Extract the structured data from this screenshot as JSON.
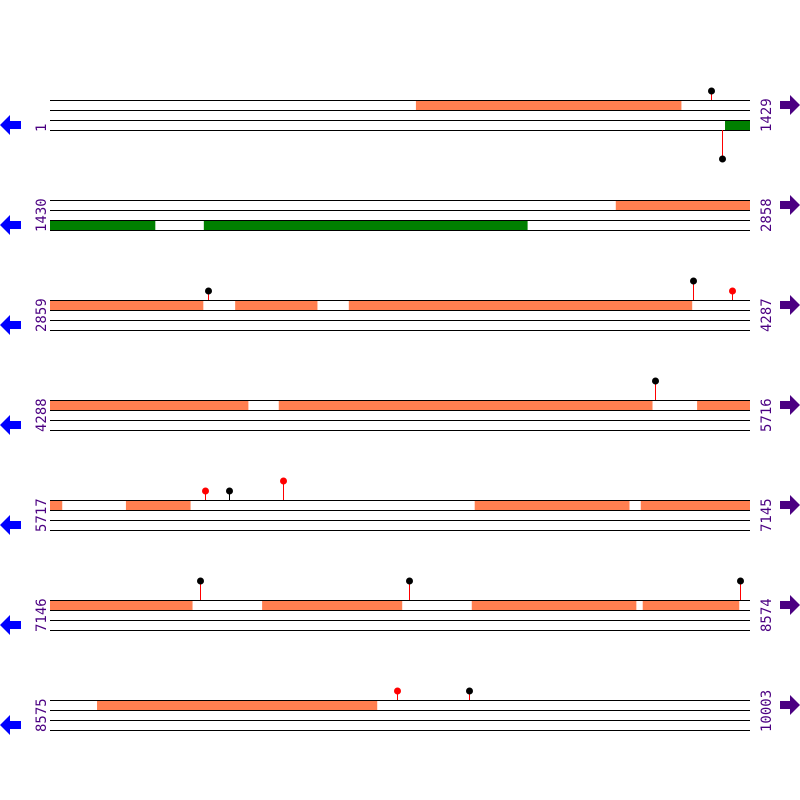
{
  "colors": {
    "forward_feature": "#FF7F50",
    "reverse_feature": "#008000",
    "line": "#000000",
    "stem_default": "#FF0000",
    "pin_black": "#000000",
    "pin_red": "#FF0000",
    "left_arrow": "#0000FF",
    "right_arrow": "#4B0082",
    "label": "#4B0082"
  },
  "icons": {
    "left": "arrow-left-icon",
    "right": "arrow-right-icon"
  },
  "rows": [
    {
      "start": 1,
      "end": 1429,
      "forward": [
        [
          748,
          1289
        ]
      ],
      "reverse": [
        [
          1379,
          1429
        ]
      ],
      "pins": [
        {
          "pos": 1350,
          "strand": "forward",
          "head": "black",
          "stem": "red",
          "level": 1
        },
        {
          "pos": 1373,
          "strand": "reverse",
          "head": "black",
          "stem": "red",
          "level": 2
        }
      ]
    },
    {
      "start": 1430,
      "end": 2858,
      "forward": [
        [
          2585,
          2858
        ]
      ],
      "reverse": [
        [
          1430,
          1644
        ],
        [
          1744,
          2404
        ]
      ],
      "pins": []
    },
    {
      "start": 2859,
      "end": 4287,
      "forward": [
        [
          2859,
          3171
        ],
        [
          3237,
          3404
        ],
        [
          3469,
          4169
        ]
      ],
      "reverse": [],
      "pins": [
        {
          "pos": 3181,
          "strand": "forward",
          "head": "black",
          "stem": "red",
          "level": 1
        },
        {
          "pos": 4171,
          "strand": "forward",
          "head": "black",
          "stem": "red",
          "level": 2
        },
        {
          "pos": 4251,
          "strand": "forward",
          "head": "red",
          "stem": "red",
          "level": 1
        }
      ]
    },
    {
      "start": 4288,
      "end": 5716,
      "forward": [
        [
          4288,
          4692
        ],
        [
          4755,
          5517
        ],
        [
          5609,
          5716
        ]
      ],
      "reverse": [],
      "pins": [
        {
          "pos": 5523,
          "strand": "forward",
          "head": "black",
          "stem": "red",
          "level": 2
        }
      ]
    },
    {
      "start": 5717,
      "end": 7145,
      "forward": [
        [
          5717,
          5741
        ],
        [
          5872,
          6003
        ],
        [
          6584,
          6899
        ],
        [
          6923,
          7145
        ]
      ],
      "reverse": [],
      "pins": [
        {
          "pos": 6033,
          "strand": "forward",
          "head": "red",
          "stem": "red",
          "level": 1
        },
        {
          "pos": 6082,
          "strand": "forward",
          "head": "black",
          "stem": "black",
          "level": 1
        },
        {
          "pos": 6193,
          "strand": "forward",
          "head": "red",
          "stem": "red",
          "level": 2
        }
      ]
    },
    {
      "start": 7146,
      "end": 8574,
      "forward": [
        [
          7146,
          7436
        ],
        [
          7579,
          7864
        ],
        [
          8007,
          8342
        ],
        [
          8356,
          8552
        ]
      ],
      "reverse": [],
      "pins": [
        {
          "pos": 7452,
          "strand": "forward",
          "head": "black",
          "stem": "red",
          "level": 2
        },
        {
          "pos": 7879,
          "strand": "forward",
          "head": "black",
          "stem": "red",
          "level": 2
        },
        {
          "pos": 8554,
          "strand": "forward",
          "head": "black",
          "stem": "red",
          "level": 2
        }
      ]
    },
    {
      "start": 8575,
      "end": 10003,
      "forward": [
        [
          8671,
          9242
        ]
      ],
      "reverse": [],
      "pins": [
        {
          "pos": 9283,
          "strand": "forward",
          "head": "red",
          "stem": "red",
          "level": 1
        },
        {
          "pos": 9430,
          "strand": "forward",
          "head": "black",
          "stem": "red",
          "level": 1
        }
      ]
    }
  ]
}
